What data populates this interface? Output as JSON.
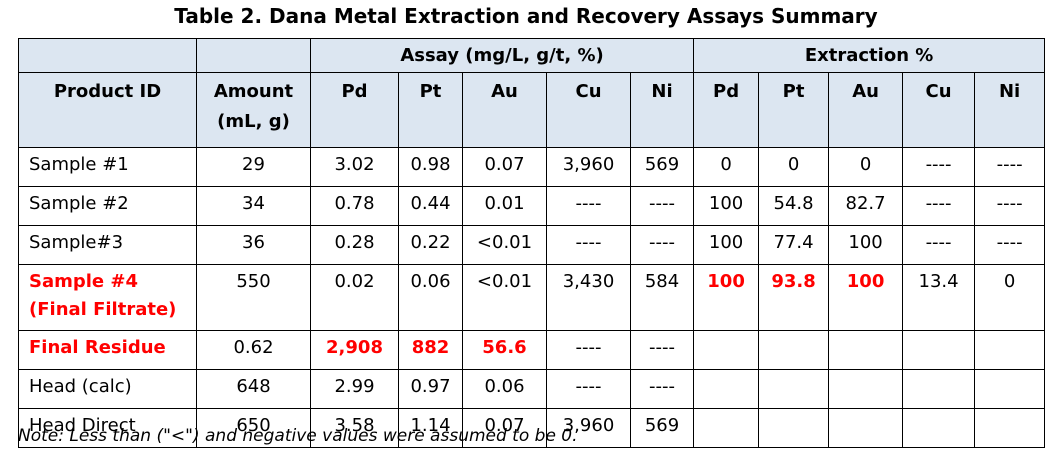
{
  "title": "Table 2. Dana Metal Extraction and Recovery Assays Summary",
  "table": {
    "group_headers": [
      "Assay (mg/L, g/t, %)",
      "Extraction %"
    ],
    "header": {
      "product_id": "Product ID",
      "amount": [
        "Amount",
        "(mL, g)"
      ],
      "assay_columns": [
        "Pd",
        "Pt",
        "Au",
        "Cu",
        "Ni"
      ],
      "extraction_columns": [
        "Pd",
        "Pt",
        "Au",
        "Cu",
        "Ni"
      ]
    },
    "rows": [
      {
        "product_id": [
          "Sample #1"
        ],
        "amount": 29,
        "assay": [
          3.02,
          0.98,
          0.07,
          "3,960",
          569
        ],
        "extraction": [
          0,
          0,
          0,
          "----",
          "----"
        ]
      },
      {
        "product_id": [
          "Sample #2"
        ],
        "amount": 34,
        "assay": [
          0.78,
          0.44,
          0.01,
          "----",
          "----"
        ],
        "extraction": [
          100,
          54.8,
          82.7,
          "----",
          "----"
        ]
      },
      {
        "product_id": [
          "Sample#3"
        ],
        "amount": 36,
        "assay": [
          0.28,
          0.22,
          "<0.01",
          "----",
          "----"
        ],
        "extraction": [
          100,
          77.4,
          100,
          "----",
          "----"
        ]
      },
      {
        "product_id": [
          "Sample #4",
          "(Final Filtrate)"
        ],
        "amount": 550,
        "assay": [
          0.02,
          0.06,
          "<0.01",
          "3,430",
          584
        ],
        "extraction": [
          100,
          93.8,
          100,
          13.4,
          0
        ]
      },
      {
        "product_id": [
          "Final Residue"
        ],
        "amount": 0.62,
        "assay": [
          "2,908",
          882,
          56.6,
          "----",
          "----"
        ]
      },
      {
        "product_id": [
          "Head (calc)"
        ],
        "amount": 648,
        "assay": [
          2.99,
          0.97,
          0.06,
          "----",
          "----"
        ]
      },
      {
        "product_id": [
          "Head Direct"
        ],
        "amount": 650,
        "assay": [
          3.58,
          1.14,
          0.07,
          "3,960",
          569
        ]
      }
    ]
  },
  "note": "Note: Less than (\"<\") and negative values were assumed to be 0."
}
